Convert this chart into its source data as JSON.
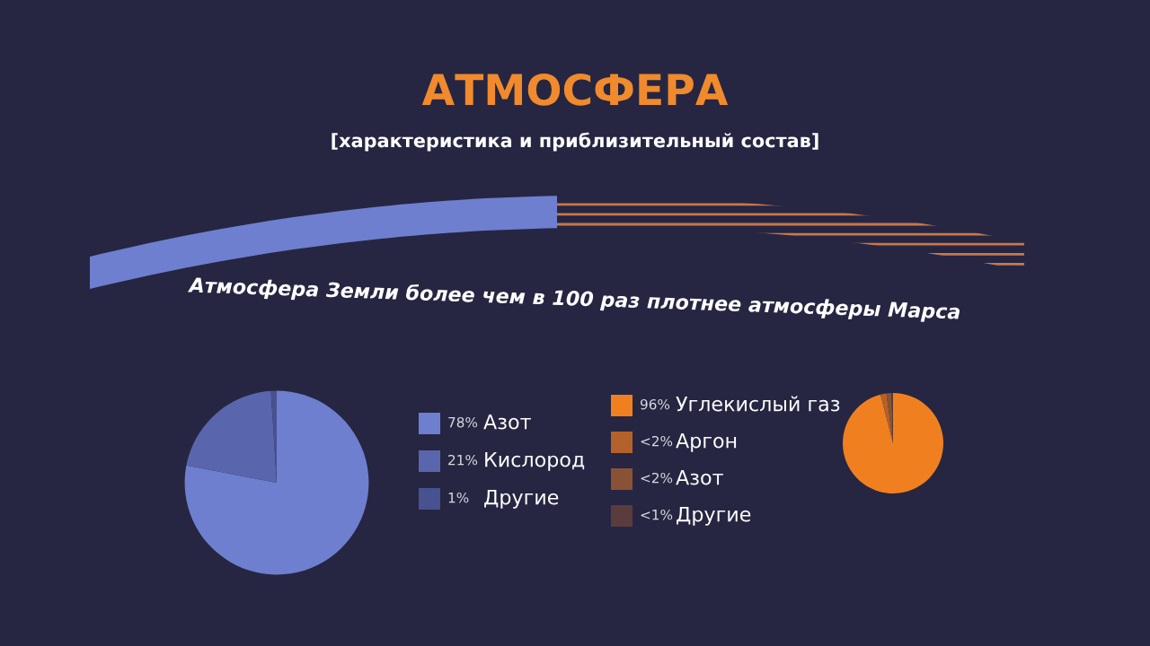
{
  "chart_data": [
    {
      "type": "pie",
      "title": "АТМОСФЕРА",
      "subtitle": "[характеристика и приблизительный состав]",
      "annotations": [
        "Атмосфера Земли более чем в 100 раз плотнее атмосферы Марса"
      ],
      "categories": [
        "Азот",
        "Кислород",
        "Другие"
      ],
      "values": [
        78,
        21,
        1
      ],
      "value_labels": [
        "78%",
        "21%",
        "1%"
      ],
      "colors": [
        "#6f7fcf",
        "#5966ad",
        "#485290"
      ],
      "legend": "right"
    },
    {
      "type": "pie",
      "categories": [
        "Углекислый газ",
        "Аргон",
        "Азот",
        "Другие"
      ],
      "values": [
        96,
        1.9,
        1.6,
        0.5
      ],
      "value_labels": [
        "96%",
        "<2%",
        "<2%",
        "<1%"
      ],
      "colors": [
        "#f0801f",
        "#b5612b",
        "#8a5234",
        "#5a3c3c"
      ],
      "legend": "left"
    }
  ]
}
